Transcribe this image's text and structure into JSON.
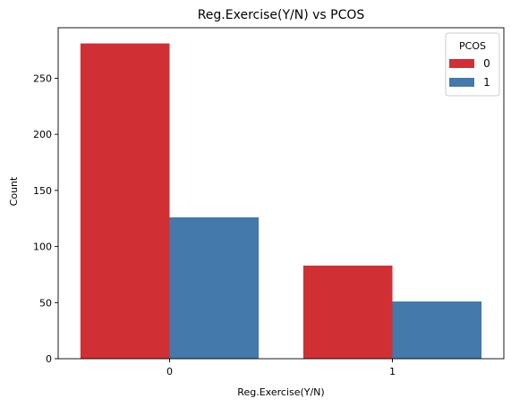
{
  "chart_data": {
    "type": "bar",
    "title": "Reg.Exercise(Y/N) vs PCOS",
    "xlabel": "Reg.Exercise(Y/N)",
    "ylabel": "Count",
    "categories": [
      "0",
      "1"
    ],
    "ylim": [
      0,
      295
    ],
    "yticks": [
      0,
      50,
      100,
      150,
      200,
      250
    ],
    "series": [
      {
        "name": "0",
        "values": [
          281,
          83
        ],
        "color": "#d03034"
      },
      {
        "name": "1",
        "values": [
          126,
          51
        ],
        "color": "#4479ab"
      }
    ],
    "legend": {
      "title": "PCOS",
      "position": "upper right"
    }
  }
}
